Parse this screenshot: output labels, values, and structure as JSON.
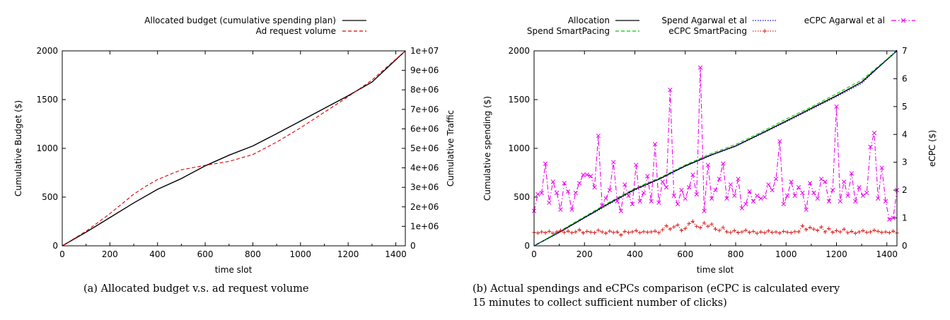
{
  "chart_data": [
    {
      "type": "line",
      "caption": "(a) Allocated budget v.s. ad request volume",
      "xlabel": "time slot",
      "ylabel": "Cumulative Budget ($)",
      "y2label": "Cumulative Traffic",
      "xlim": [
        0,
        1440
      ],
      "ylim": [
        0,
        2000
      ],
      "y2lim": [
        0,
        10000000
      ],
      "x_ticks": [
        "0",
        "200",
        "400",
        "600",
        "800",
        "1000",
        "1200",
        "1400"
      ],
      "y_ticks": [
        "0",
        "500",
        "1000",
        "1500",
        "2000"
      ],
      "y2_ticks": [
        "0",
        "1e+06",
        "2e+06",
        "3e+06",
        "4e+06",
        "5e+06",
        "6e+06",
        "7e+06",
        "8e+06",
        "9e+06",
        "1e+07"
      ],
      "legend_position": "top-center",
      "series": [
        {
          "name": "Allocated budget (cumulative spending plan)",
          "axis": "left",
          "color": "#000000",
          "style": "solid",
          "x": [
            0,
            100,
            200,
            300,
            400,
            500,
            600,
            700,
            800,
            900,
            1000,
            1100,
            1200,
            1300,
            1440
          ],
          "y": [
            0,
            140,
            290,
            440,
            580,
            690,
            820,
            930,
            1025,
            1150,
            1280,
            1410,
            1540,
            1680,
            2000
          ]
        },
        {
          "name": "Ad request volume",
          "axis": "right",
          "color": "#dd0000",
          "style": "dashed",
          "x": [
            0,
            100,
            200,
            300,
            350,
            400,
            500,
            600,
            700,
            800,
            900,
            1000,
            1100,
            1200,
            1300,
            1440
          ],
          "y": [
            0,
            750000,
            1650000,
            2650000,
            3050000,
            3400000,
            3900000,
            4130000,
            4330000,
            4680000,
            5320000,
            6050000,
            6850000,
            7650000,
            8500000,
            10000000
          ]
        }
      ]
    },
    {
      "type": "line",
      "caption_line1": "(b) Actual spendings and eCPCs comparison (eCPC is calculated every",
      "caption_line2": "15 minutes to collect sufficient number of clicks)",
      "xlabel": "time slot",
      "ylabel": "Cumulative spending ($)",
      "y2label": "eCPC ($)",
      "xlim": [
        0,
        1440
      ],
      "ylim": [
        0,
        2000
      ],
      "y2lim": [
        0,
        7
      ],
      "x_ticks": [
        "0",
        "200",
        "400",
        "600",
        "800",
        "1000",
        "1200",
        "1400"
      ],
      "y_ticks": [
        "0",
        "500",
        "1000",
        "1500",
        "2000"
      ],
      "y2_ticks": [
        "0",
        "1",
        "2",
        "3",
        "4",
        "5",
        "6",
        "7"
      ],
      "legend_position": "top",
      "series": [
        {
          "name": "Allocation",
          "axis": "left",
          "color": "#000000",
          "style": "solid",
          "x": [
            0,
            100,
            200,
            300,
            400,
            500,
            600,
            700,
            800,
            900,
            1000,
            1100,
            1200,
            1300,
            1440
          ],
          "y": [
            0,
            140,
            290,
            440,
            580,
            690,
            820,
            930,
            1025,
            1150,
            1280,
            1410,
            1540,
            1680,
            2000
          ]
        },
        {
          "name": "Spend SmartPacing",
          "axis": "left",
          "color": "#00cc00",
          "style": "dashed",
          "x": [
            0,
            100,
            200,
            300,
            400,
            500,
            600,
            700,
            800,
            900,
            1000,
            1100,
            1200,
            1300,
            1440
          ],
          "y": [
            0,
            148,
            300,
            450,
            590,
            700,
            830,
            945,
            1040,
            1165,
            1300,
            1425,
            1560,
            1700,
            2000
          ]
        },
        {
          "name": "Spend Agarwal et al",
          "axis": "left",
          "color": "#0000dd",
          "style": "dotted",
          "x": [
            0,
            100,
            200,
            300,
            400,
            500,
            600,
            700,
            800,
            900,
            1000,
            1100,
            1200,
            1300,
            1440
          ],
          "y": [
            0,
            135,
            285,
            430,
            570,
            685,
            815,
            925,
            1020,
            1145,
            1270,
            1400,
            1530,
            1665,
            2010
          ]
        },
        {
          "name": "eCPC SmartPacing",
          "axis": "right",
          "color": "#dd2222",
          "marker": "+",
          "style": "dotted",
          "x": [
            0,
            15,
            30,
            45,
            60,
            75,
            90,
            105,
            120,
            135,
            150,
            165,
            180,
            195,
            210,
            225,
            240,
            255,
            270,
            285,
            300,
            315,
            330,
            345,
            360,
            375,
            390,
            405,
            420,
            435,
            450,
            465,
            480,
            495,
            510,
            525,
            540,
            555,
            570,
            585,
            600,
            615,
            630,
            645,
            660,
            675,
            690,
            705,
            720,
            735,
            750,
            765,
            780,
            795,
            810,
            825,
            840,
            855,
            870,
            885,
            900,
            915,
            930,
            945,
            960,
            975,
            990,
            1005,
            1020,
            1035,
            1050,
            1065,
            1080,
            1095,
            1110,
            1125,
            1140,
            1155,
            1170,
            1185,
            1200,
            1215,
            1230,
            1245,
            1260,
            1275,
            1290,
            1305,
            1320,
            1335,
            1350,
            1365,
            1380,
            1395,
            1410,
            1425,
            1440
          ],
          "y": [
            0.48,
            0.46,
            0.5,
            0.47,
            0.52,
            0.45,
            0.5,
            0.55,
            0.48,
            0.53,
            0.47,
            0.5,
            0.58,
            0.46,
            0.52,
            0.49,
            0.47,
            0.56,
            0.5,
            0.45,
            0.53,
            0.48,
            0.5,
            0.38,
            0.52,
            0.48,
            0.5,
            0.55,
            0.47,
            0.51,
            0.49,
            0.5,
            0.53,
            0.47,
            0.58,
            0.72,
            0.6,
            0.68,
            0.75,
            0.55,
            0.62,
            0.8,
            0.88,
            0.7,
            0.65,
            0.82,
            0.7,
            0.78,
            0.6,
            0.55,
            0.66,
            0.5,
            0.48,
            0.55,
            0.47,
            0.5,
            0.56,
            0.48,
            0.52,
            0.45,
            0.5,
            0.47,
            0.54,
            0.48,
            0.5,
            0.46,
            0.52,
            0.49,
            0.47,
            0.51,
            0.5,
            0.72,
            0.58,
            0.66,
            0.6,
            0.55,
            0.68,
            0.5,
            0.62,
            0.48,
            0.55,
            0.5,
            0.6,
            0.47,
            0.52,
            0.45,
            0.5,
            0.55,
            0.48,
            0.5,
            0.56,
            0.52,
            0.48,
            0.5,
            0.47,
            0.53,
            0.46
          ]
        },
        {
          "name": "eCPC Agarwal et al",
          "axis": "right",
          "color": "#ee00ee",
          "marker": "x",
          "style": "dashdot",
          "x": [
            0,
            15,
            30,
            45,
            60,
            75,
            90,
            105,
            120,
            135,
            150,
            165,
            180,
            195,
            210,
            225,
            240,
            255,
            270,
            285,
            300,
            315,
            330,
            345,
            360,
            375,
            390,
            405,
            420,
            435,
            450,
            465,
            480,
            495,
            510,
            525,
            540,
            555,
            570,
            585,
            600,
            615,
            630,
            645,
            660,
            675,
            690,
            705,
            720,
            735,
            750,
            765,
            780,
            795,
            810,
            825,
            840,
            855,
            870,
            885,
            900,
            915,
            930,
            945,
            960,
            975,
            990,
            1005,
            1020,
            1035,
            1050,
            1065,
            1080,
            1095,
            1110,
            1125,
            1140,
            1155,
            1170,
            1185,
            1200,
            1215,
            1230,
            1245,
            1260,
            1275,
            1290,
            1305,
            1320,
            1335,
            1350,
            1365,
            1380,
            1395,
            1410,
            1425,
            1440
          ],
          "y": [
            1.25,
            1.85,
            1.9,
            2.95,
            1.55,
            2.3,
            1.9,
            1.3,
            2.25,
            1.95,
            1.3,
            1.9,
            2.25,
            2.55,
            2.55,
            2.5,
            2.1,
            3.95,
            1.45,
            1.7,
            2.0,
            3.0,
            1.6,
            1.25,
            2.2,
            1.8,
            1.5,
            2.9,
            1.6,
            1.9,
            2.5,
            1.6,
            3.65,
            1.55,
            2.3,
            2.1,
            5.6,
            1.8,
            1.5,
            2.0,
            1.7,
            2.1,
            2.55,
            1.85,
            6.4,
            1.25,
            2.9,
            1.7,
            2.0,
            2.4,
            2.95,
            1.7,
            2.2,
            1.8,
            2.4,
            1.35,
            1.5,
            1.95,
            1.6,
            1.8,
            1.7,
            1.75,
            2.2,
            2.0,
            2.4,
            3.75,
            1.5,
            1.8,
            2.3,
            1.8,
            2.1,
            1.9,
            1.3,
            2.25,
            1.9,
            1.7,
            2.4,
            2.3,
            1.6,
            2.0,
            5.0,
            1.6,
            2.3,
            1.8,
            2.6,
            1.6,
            2.1,
            1.8,
            1.9,
            3.55,
            4.05,
            1.7,
            2.8,
            1.6,
            0.95,
            1.0,
            2.0
          ]
        }
      ]
    }
  ]
}
